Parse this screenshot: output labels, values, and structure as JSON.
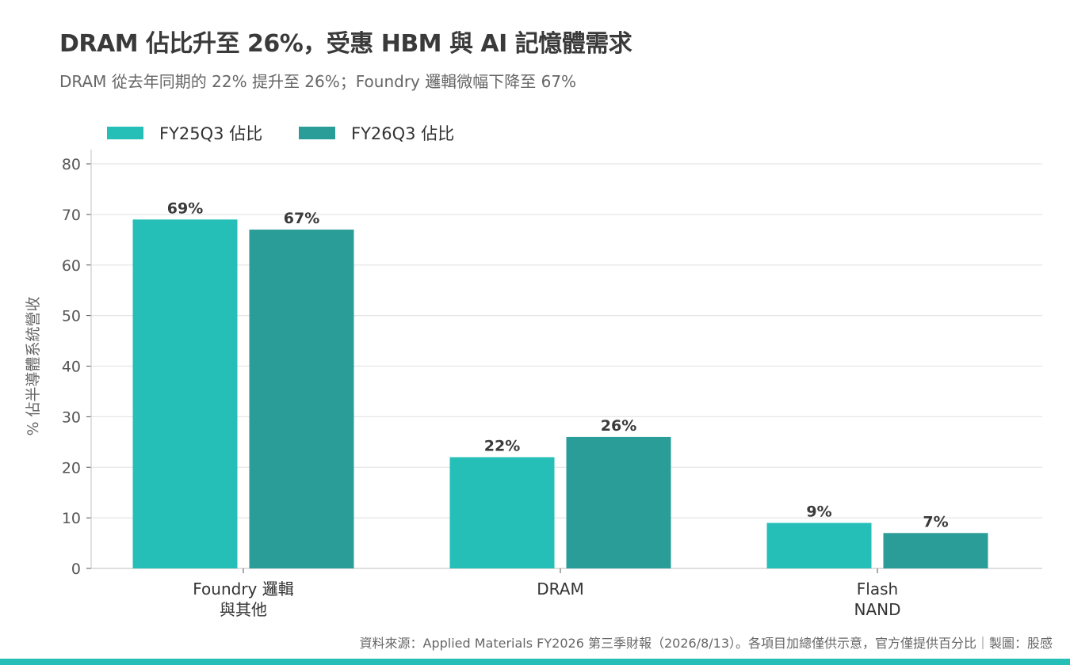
{
  "title": "DRAM 佔比升至 26%，受惠 HBM 與 AI 記憶體需求",
  "subtitle": "DRAM 從去年同期的 22% 提升至 26%；Foundry 邏輯微幅下降至 67%",
  "source_note": "資料來源：Applied Materials FY2026 第三季財報（2026/8/13）。各項目加總僅供示意，官方僅提供百分比｜製圖：股感",
  "colors": {
    "series_fy25q3": "#26bfb8",
    "series_fy26q3": "#2a9d98",
    "grid": "#e6e6e6",
    "axis": "#cccccc",
    "bottom_bar": "#26bfb8"
  },
  "chart_data": {
    "type": "bar",
    "categories": [
      [
        "Foundry 邏輯",
        "與其他"
      ],
      [
        "DRAM"
      ],
      [
        "Flash",
        "NAND"
      ]
    ],
    "series": [
      {
        "name": "FY25Q3 佔比",
        "values": [
          69,
          22,
          9
        ],
        "labels": [
          "69%",
          "22%",
          "9%"
        ]
      },
      {
        "name": "FY26Q3 佔比",
        "values": [
          67,
          26,
          7
        ],
        "labels": [
          "67%",
          "26%",
          "7%"
        ]
      }
    ],
    "ylabel": "% 佔半導體系統營收",
    "xlabel": "",
    "ylim": [
      0,
      80
    ],
    "yticks": [
      0,
      10,
      20,
      30,
      40,
      50,
      60,
      70,
      80
    ],
    "grid": true,
    "legend": "top-left"
  }
}
